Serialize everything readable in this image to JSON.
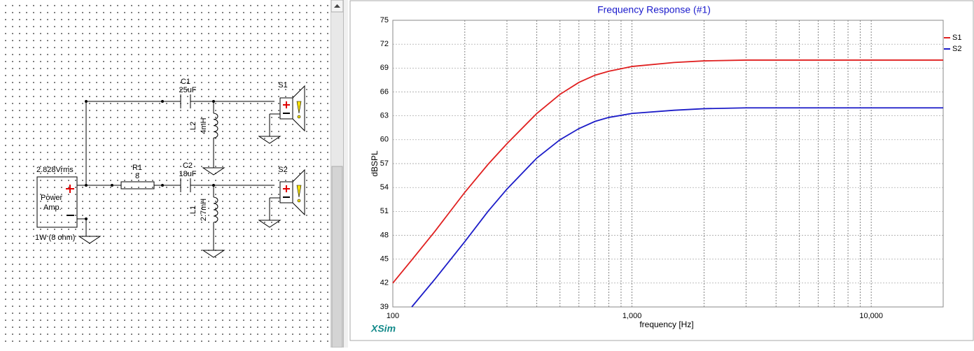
{
  "schematic": {
    "source": {
      "voltage": "2.828Vrms",
      "line1": "Power",
      "line2": "Amp.",
      "rating": "1W (8 ohm)"
    },
    "c1": {
      "name": "C1",
      "value": "25uF"
    },
    "l2": {
      "name": "L2",
      "value": "4mH"
    },
    "r1": {
      "name": "R1",
      "value": "8"
    },
    "c2": {
      "name": "C2",
      "value": "18uF"
    },
    "l1": {
      "name": "L1",
      "value": "2.7mH"
    },
    "s1": {
      "name": "S1"
    },
    "s2": {
      "name": "S2"
    }
  },
  "brand": "XSim",
  "chart_data": {
    "type": "line",
    "title": "Frequency Response (#1)",
    "xlabel": "frequency [Hz]",
    "ylabel": "dBSPL",
    "xscale": "log",
    "grid": true,
    "legend": "right",
    "x": [
      100,
      120,
      150,
      200,
      250,
      300,
      400,
      500,
      600,
      700,
      800,
      1000,
      1500,
      2000,
      3000,
      5000,
      10000,
      20000
    ],
    "series": [
      {
        "name": "S1",
        "color": "#e02020",
        "values": [
          42,
          44.9,
          48.5,
          53.4,
          56.9,
          59.5,
          63.3,
          65.7,
          67.2,
          68.1,
          68.6,
          69.2,
          69.7,
          69.9,
          70,
          70,
          70,
          70
        ]
      },
      {
        "name": "S2",
        "color": "#1c1cc8",
        "values": [
          null,
          39,
          42.5,
          47.2,
          51,
          53.8,
          57.7,
          60,
          61.4,
          62.3,
          62.8,
          63.3,
          63.7,
          63.9,
          64,
          64,
          64,
          64
        ]
      }
    ],
    "xlim": [
      100,
      20000
    ],
    "xticks": [
      100,
      {
        "value": 1000,
        "label": "1,000"
      },
      {
        "value": 10000,
        "label": "10,000"
      }
    ],
    "x_minor_grid": [
      200,
      300,
      400,
      500,
      600,
      700,
      800,
      900,
      2000,
      3000,
      4000,
      5000,
      6000,
      7000,
      8000,
      9000
    ],
    "ylim": [
      39,
      75
    ],
    "yticks": [
      39,
      42,
      45,
      48,
      51,
      54,
      57,
      60,
      63,
      66,
      69,
      72,
      75
    ]
  }
}
